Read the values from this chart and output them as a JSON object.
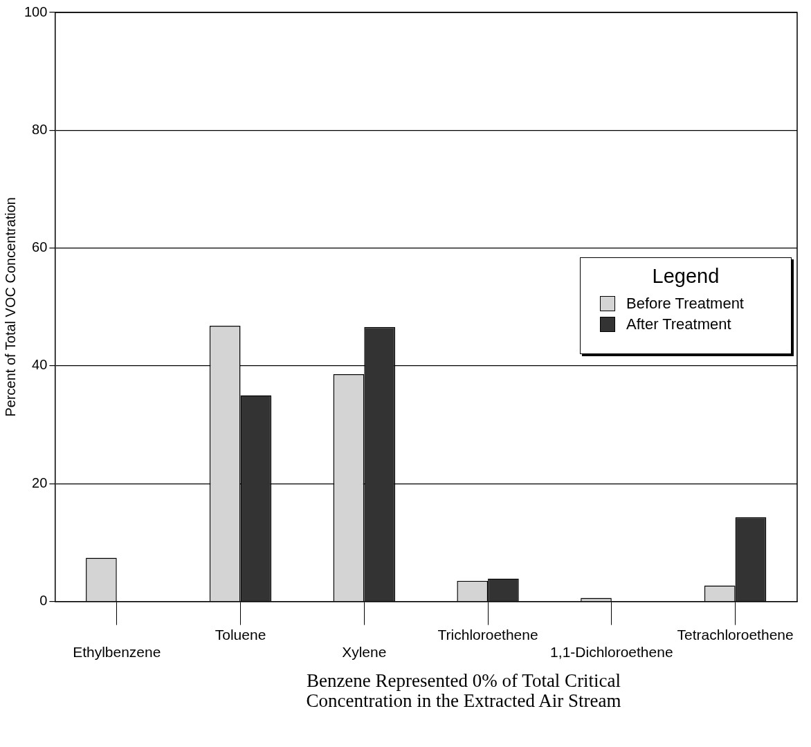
{
  "chart_data": {
    "type": "bar",
    "categories": [
      "Ethylbenzene",
      "Toluene",
      "Xylene",
      "Trichloroethene",
      "1,1-Dichloroethene",
      "Tetrachloroethene"
    ],
    "series": [
      {
        "name": "Before Treatment",
        "color": "#d4d4d4",
        "values": [
          7.4,
          46.8,
          38.6,
          3.5,
          0.6,
          2.7
        ]
      },
      {
        "name": "After Treatment",
        "color": "#333333",
        "values": [
          0,
          35.0,
          46.6,
          3.9,
          0,
          14.3
        ]
      }
    ],
    "ylabel": "Percent of Total VOC Concentration",
    "legend_title": "Legend",
    "legend": "right",
    "ylim": [
      0,
      100
    ],
    "yticks": [
      0,
      20,
      40,
      60,
      80,
      100
    ],
    "grid": "y",
    "annotations": [
      "Benzene Represented 0% of Total Critical Concentration in the Extracted Air Stream"
    ]
  }
}
